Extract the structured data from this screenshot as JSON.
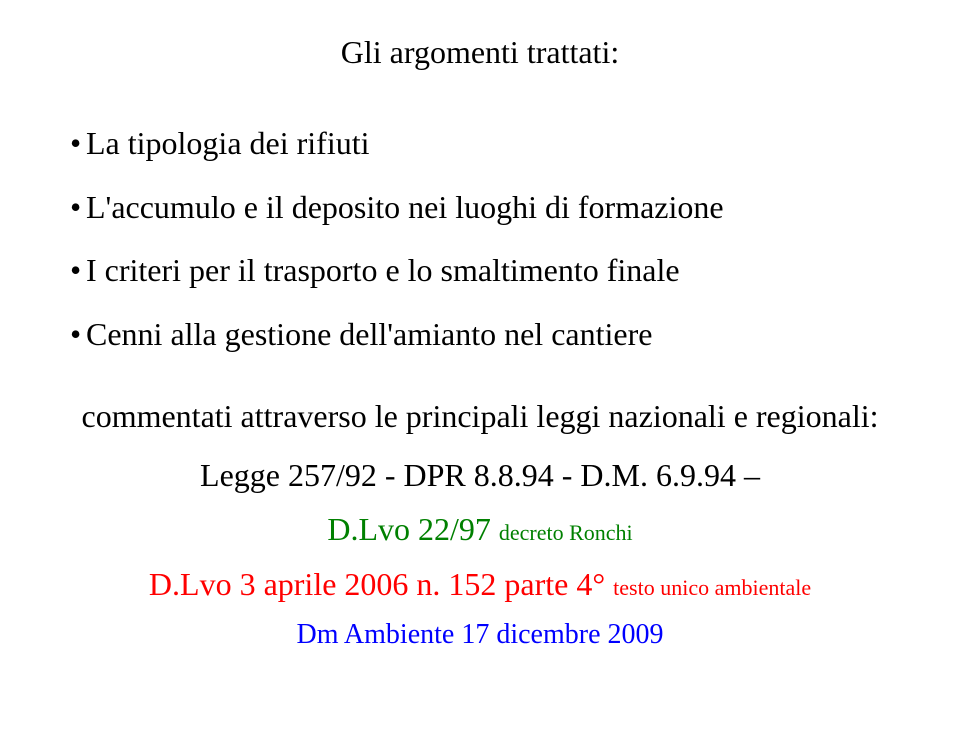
{
  "title": "Gli argomenti trattati:",
  "bullets": [
    "La tipologia dei rifiuti",
    "L'accumulo e il deposito nei luoghi di formazione",
    "I criteri per il trasporto e lo smaltimento finale",
    "Cenni alla gestione dell'amianto nel cantiere"
  ],
  "intro": "commentati attraverso le principali leggi nazionali e regionali:",
  "laws": [
    {
      "text": "Legge 257/92 - DPR 8.8.94 - D.M. 6.9.94 –",
      "color": "#000000",
      "fontsize": 32
    },
    {
      "text": "D.Lvo 22/97 decreto Ronchi",
      "color": "#008000",
      "fontsize_main": 32,
      "suffix_start": 12,
      "fontsize_suffix": 22
    },
    {
      "text": "D.Lvo 3 aprile 2006 n. 152 parte 4° testo unico ambientale",
      "color": "#ff0000",
      "fontsize_main": 32,
      "suffix_start": 36,
      "fontsize_suffix": 22
    },
    {
      "text": "Dm Ambiente 17 dicembre 2009",
      "color": "#0000ff",
      "fontsize": 28
    }
  ],
  "colors": {
    "background": "#ffffff",
    "text": "#000000"
  }
}
